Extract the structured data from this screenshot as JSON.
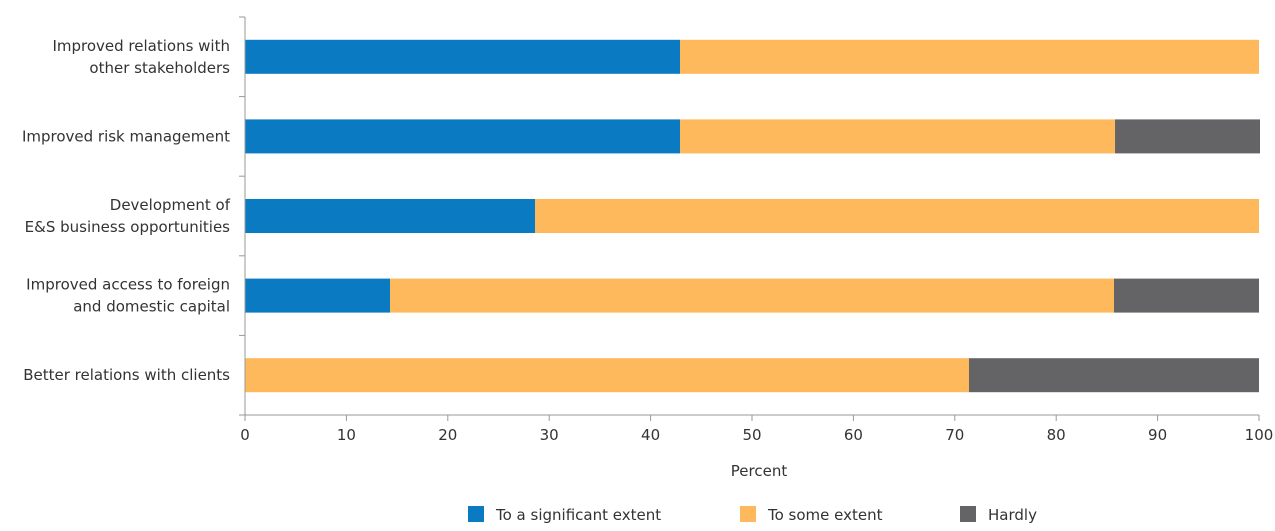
{
  "chart_data": {
    "type": "bar",
    "orientation": "horizontal",
    "stacked": true,
    "categories": [
      [
        "Improved relations with",
        "other stakeholders"
      ],
      [
        "Improved risk management"
      ],
      [
        "Development of",
        "E&S business opportunities"
      ],
      [
        "Improved access to foreign",
        "and domestic capital"
      ],
      [
        "Better relations with clients"
      ]
    ],
    "series": [
      {
        "name": "To a significant extent",
        "color": "#0a7bc2",
        "values": [
          42.9,
          42.9,
          28.6,
          14.3,
          0
        ]
      },
      {
        "name": "To some extent",
        "color": "#fdb95b",
        "values": [
          57.1,
          42.9,
          71.4,
          71.4,
          71.4
        ]
      },
      {
        "name": "Hardly",
        "color": "#646466",
        "values": [
          0,
          14.3,
          0,
          14.3,
          28.6
        ]
      }
    ],
    "xlabel": "Percent",
    "ylabel": "",
    "xlim": [
      0,
      100
    ],
    "xticks": [
      "0",
      "10",
      "20",
      "30",
      "40",
      "50",
      "60",
      "70",
      "80",
      "90",
      "100"
    ],
    "grid": false,
    "legend_position": "bottom-center",
    "axis_color": "#999999"
  }
}
